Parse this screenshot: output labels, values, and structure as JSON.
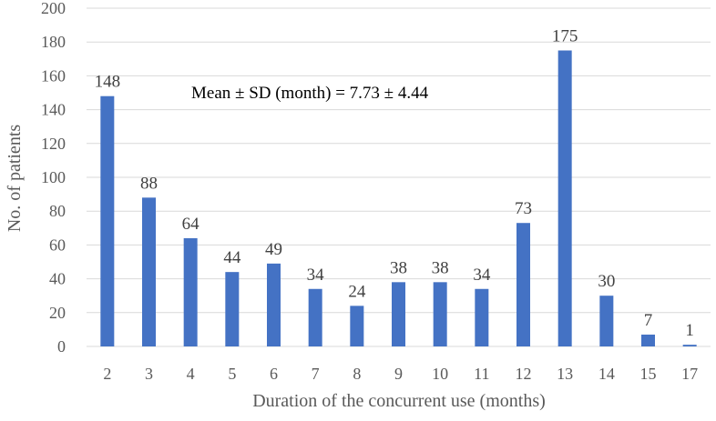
{
  "chart_data": {
    "type": "bar",
    "title": "",
    "xlabel": "Duration of the concurrent use (months)",
    "ylabel": "No. of patients",
    "categories": [
      "2",
      "3",
      "4",
      "5",
      "6",
      "7",
      "8",
      "9",
      "10",
      "11",
      "12",
      "13",
      "14",
      "15",
      "17"
    ],
    "values": [
      148,
      88,
      64,
      44,
      49,
      34,
      24,
      38,
      38,
      34,
      73,
      175,
      30,
      7,
      1
    ],
    "ylim": [
      0,
      200
    ],
    "yticks": [
      0,
      20,
      40,
      60,
      80,
      100,
      120,
      140,
      160,
      180,
      200
    ],
    "grid": true,
    "bar_color": "#4472c4",
    "annotation": "Mean ± SD (month) = 7.73 ± 4.44"
  }
}
